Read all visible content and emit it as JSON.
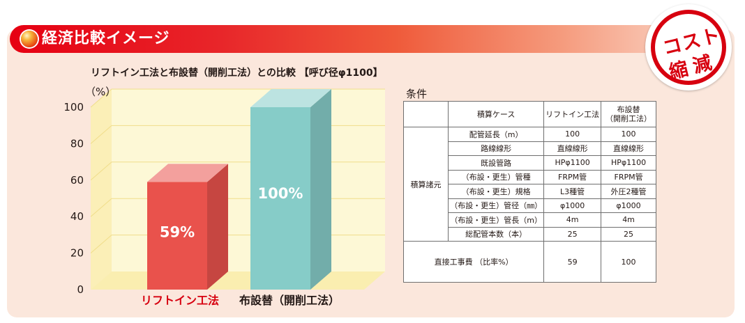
{
  "banner": {
    "title": "経済比較イメージ"
  },
  "stamp": {
    "line1": "コスト",
    "line2": "縮減"
  },
  "chart_data": {
    "type": "bar",
    "title": "リフトイン工法と布設替（開削工法）との比較 【呼び径φ1100】",
    "yunit": "（%）",
    "ylim": [
      0,
      100
    ],
    "yticks": [
      0,
      20,
      40,
      60,
      80,
      100
    ],
    "grid": true,
    "categories": [
      "リフトイン工法",
      "布設替（開削工法）"
    ],
    "values": [
      59,
      100
    ],
    "value_labels": [
      "59%",
      "100%"
    ],
    "colors": {
      "bars": [
        "#e9524c",
        "#86ccc8"
      ],
      "categories": [
        "#d7000f",
        "#231815"
      ]
    }
  },
  "conditions": {
    "title": "条件",
    "header": {
      "case": "積算ケース",
      "col1": "リフトイン工法",
      "col2a": "布設替",
      "col2b": "（開削工法）"
    },
    "group": "積算諸元",
    "rows": [
      {
        "label": "配管延長（m）",
        "v1": "100",
        "v2": "100"
      },
      {
        "label": "路線線形",
        "v1": "直線線形",
        "v2": "直線線形"
      },
      {
        "label": "既設管路",
        "v1": "HPφ1100",
        "v2": "HPφ1100"
      },
      {
        "label": "（布設・更生）管種",
        "v1": "FRPM管",
        "v2": "FRPM管"
      },
      {
        "label": "（布設・更生）規格",
        "v1": "L3種管",
        "v2": "外圧2種管"
      },
      {
        "label": "（布設・更生）管径（㎜）",
        "v1": "φ1000",
        "v2": "φ1000"
      },
      {
        "label": "（布設・更生）管長（m）",
        "v1": "4m",
        "v2": "4m"
      },
      {
        "label": "総配管本数（本）",
        "v1": "25",
        "v2": "25"
      }
    ],
    "footer": {
      "label": "直接工事費 （比率%）",
      "v1": "59",
      "v2": "100"
    }
  }
}
